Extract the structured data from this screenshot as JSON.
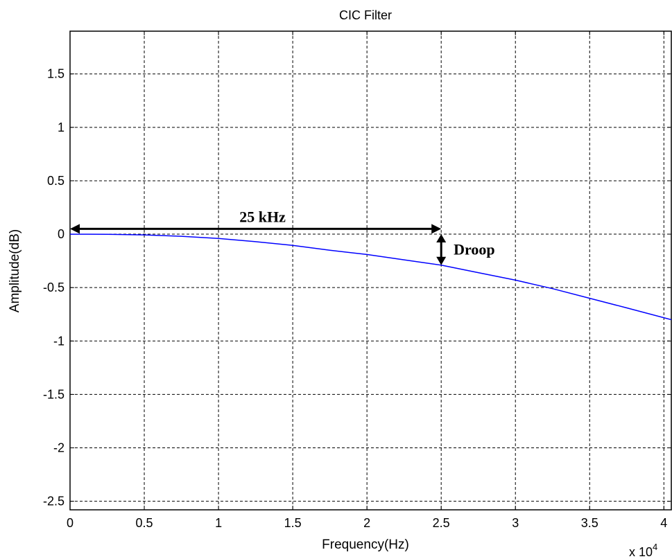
{
  "chart_data": {
    "type": "line",
    "title": "CIC Filter",
    "xlabel": "Frequency(Hz)",
    "ylabel": "Amplitude(dB)",
    "x_multiplier_label": "x 10",
    "x_multiplier_exponent": "4",
    "xlim": [
      0,
      40500
    ],
    "ylim": [
      -2.58,
      1.9
    ],
    "grid": true,
    "xticks": [
      0,
      5000,
      10000,
      15000,
      20000,
      25000,
      30000,
      35000,
      40000
    ],
    "xtick_labels": [
      "0",
      "0.5",
      "1",
      "1.5",
      "2",
      "2.5",
      "3",
      "3.5",
      "4"
    ],
    "yticks": [
      1.5,
      1,
      0.5,
      0,
      -0.5,
      -1,
      -1.5,
      -2,
      -2.5
    ],
    "ytick_labels": [
      "1.5",
      "1",
      "0.5",
      "0",
      "-0.5",
      "-1",
      "-1.5",
      "-2",
      "-2.5"
    ],
    "series": [
      {
        "color": "#0000ff",
        "x": [
          0,
          2500,
          5000,
          7500,
          10000,
          12500,
          15000,
          17500,
          20000,
          22500,
          25000,
          27500,
          30000,
          32500,
          35000,
          37500,
          40500
        ],
        "y": [
          0,
          -0.001,
          -0.007,
          -0.02,
          -0.04,
          -0.07,
          -0.105,
          -0.15,
          -0.19,
          -0.24,
          -0.29,
          -0.36,
          -0.43,
          -0.51,
          -0.6,
          -0.69,
          -0.8
        ]
      }
    ],
    "annotations": [
      {
        "text": "25 kHz",
        "type": "double-arrow-horizontal",
        "x1": 0,
        "x2": 25000,
        "y": 0.05
      },
      {
        "text": "Droop",
        "type": "double-arrow-vertical",
        "x": 25000,
        "y1": 0.0,
        "y2": -0.29
      }
    ]
  }
}
